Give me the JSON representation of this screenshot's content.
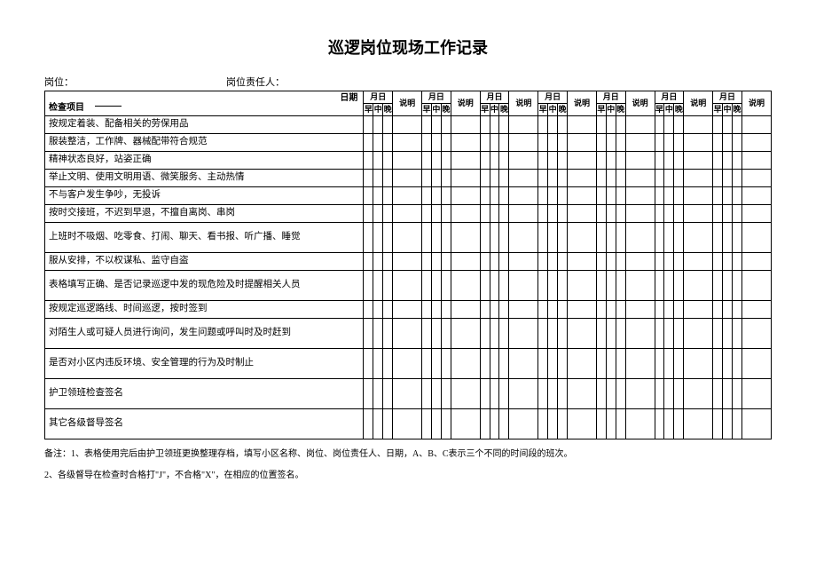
{
  "title": "巡逻岗位现场工作记录",
  "header": {
    "post_label": "岗位：",
    "responsible_label": "岗位责任人："
  },
  "table": {
    "date_label": "日期",
    "check_item_label": "检查项目",
    "month_day": "月日",
    "desc": "说明",
    "sub_headers": [
      "早",
      "中",
      "晚"
    ],
    "day_count": 7,
    "rows": [
      {
        "text": "按规定着装、配备相关的劳保用品",
        "height": 1
      },
      {
        "text": "服装整洁，工作牌、器械配带符合规范",
        "height": 1
      },
      {
        "text": "精神状态良好，站姿正确",
        "height": 1
      },
      {
        "text": "举止文明、使用文明用语、微笑服务、主动热情",
        "height": 1
      },
      {
        "text": "不与客户发生争吵，无投诉",
        "height": 1
      },
      {
        "text": "按时交接班，不迟到早退，不擅自离岗、串岗",
        "height": 1
      },
      {
        "text": "上班时不吸烟、吃零食、打闹、聊天、看书报、听广播、睡觉",
        "height": 2
      },
      {
        "text": "服从安排，不以权谋私、监守自盗",
        "height": 1
      },
      {
        "text": "表格填写正确、是否记录巡逻中发的现危险及时提醒相关人员",
        "height": 2
      },
      {
        "text": "按规定巡逻路线、时间巡逻，按时签到",
        "height": 1
      },
      {
        "text": "对陌生人或可疑人员进行询问，发生问题或呼叫时及时赶到",
        "height": 2
      },
      {
        "text": "是否对小区内违反环境、安全管理的行为及时制止",
        "height": 2
      },
      {
        "text": "护卫领班检查签名",
        "height": 2
      },
      {
        "text": "其它各级督导签名",
        "height": 2
      }
    ]
  },
  "notes": {
    "line1": "备注：1、表格使用完后由护卫领班更换整理存档，填写小区名称、岗位、岗位责任人、日期，A、B、C表示三个不同的时间段的班次。",
    "line2": "2、各级督导在检查时合格打\"J\"，不合格\"X\"，在相应的位置签名。"
  }
}
